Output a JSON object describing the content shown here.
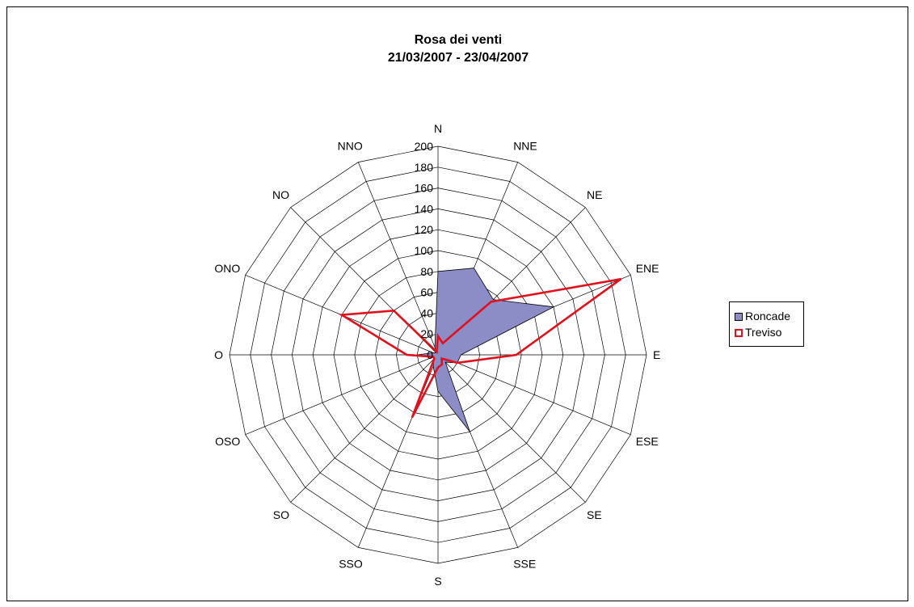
{
  "chart_data": {
    "type": "radar",
    "title": "Rosa dei venti",
    "subtitle": "21/03/2007 - 23/04/2007",
    "categories": [
      "N",
      "NNE",
      "NE",
      "ENE",
      "E",
      "ESE",
      "SE",
      "SSE",
      "S",
      "SSO",
      "SO",
      "OSO",
      "O",
      "ONO",
      "NO",
      "NNO"
    ],
    "rlim": [
      0,
      200
    ],
    "rticks": [
      "0",
      "20",
      "40",
      "60",
      "80",
      "100",
      "120",
      "140",
      "160",
      "180",
      "200"
    ],
    "grid": true,
    "legend_position": "right",
    "series": [
      {
        "name": "Roncade",
        "type": "area",
        "color": "#8c8cc6",
        "edge_color": "#000000",
        "values": [
          80,
          90,
          75,
          120,
          22,
          20,
          10,
          80,
          35,
          12,
          6,
          5,
          20,
          5,
          3,
          8
        ]
      },
      {
        "name": "Treviso",
        "type": "line",
        "color": "#e0101c",
        "values": [
          18,
          12,
          72,
          190,
          75,
          20,
          5,
          10,
          12,
          65,
          5,
          5,
          30,
          100,
          60,
          3
        ]
      }
    ]
  }
}
